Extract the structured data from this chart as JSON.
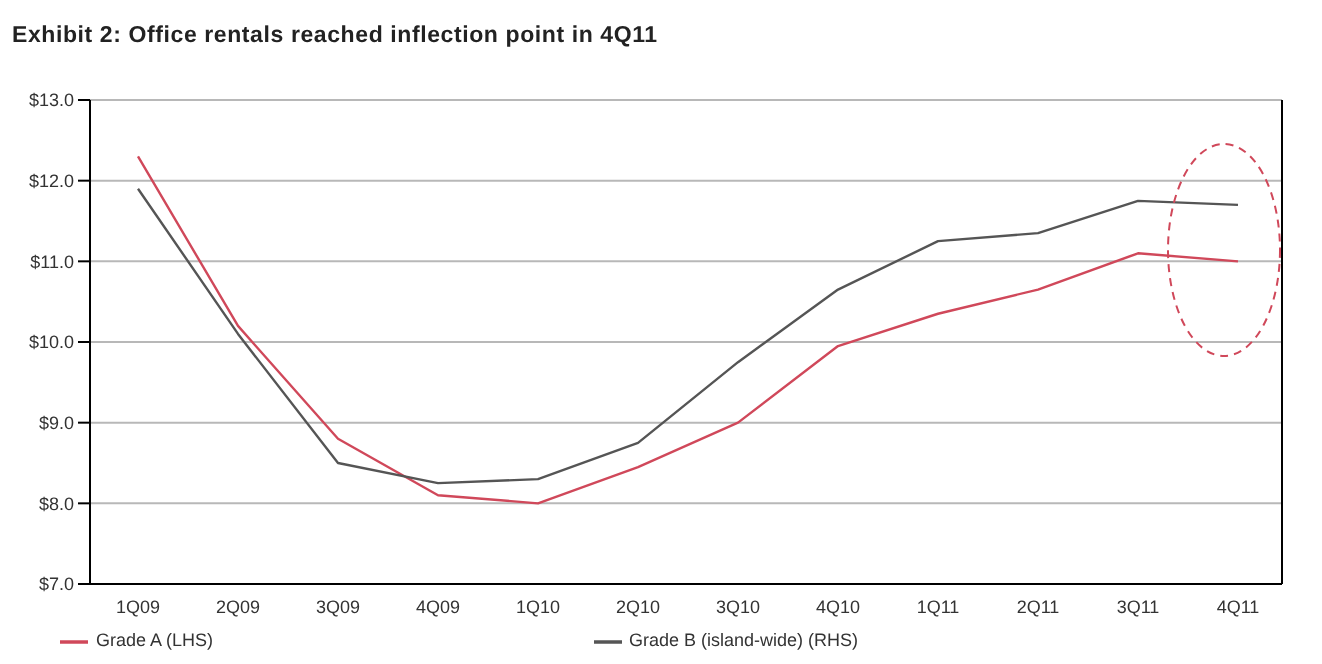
{
  "chart_data": {
    "type": "line",
    "title": "Exhibit 2: Office rentals reached inflection point in 4Q11",
    "categories": [
      "1Q09",
      "2Q09",
      "3Q09",
      "4Q09",
      "1Q10",
      "2Q10",
      "3Q10",
      "4Q10",
      "1Q11",
      "2Q11",
      "3Q11",
      "4Q11"
    ],
    "series": [
      {
        "name": "Grade A (LHS)",
        "color": "#d0485a",
        "values": [
          12.3,
          10.2,
          8.8,
          8.1,
          8.0,
          8.45,
          9.0,
          9.95,
          10.35,
          10.65,
          11.1,
          11.0
        ]
      },
      {
        "name": "Grade B (island-wide) (RHS)",
        "color": "#555555",
        "values": [
          11.9,
          10.1,
          8.5,
          8.25,
          8.3,
          8.75,
          9.75,
          10.65,
          11.25,
          11.35,
          11.75,
          11.7
        ]
      }
    ],
    "ylim": [
      7,
      13
    ],
    "yticks": [
      {
        "value": 7,
        "label": "$7.0"
      },
      {
        "value": 8,
        "label": "$8.0"
      },
      {
        "value": 9,
        "label": "$9.0"
      },
      {
        "value": 10,
        "label": "$10.0"
      },
      {
        "value": 11,
        "label": "$11.0"
      },
      {
        "value": 12,
        "label": "$12.0"
      },
      {
        "value": 13,
        "label": "$13.0"
      }
    ],
    "grid": "y",
    "legend": "bottom",
    "marker": "none",
    "line_style": "solid"
  }
}
